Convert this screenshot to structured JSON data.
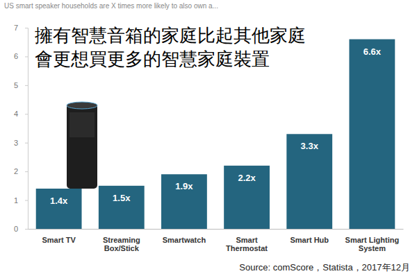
{
  "chart_data": {
    "type": "bar",
    "title": [
      "擁有智慧音箱的家庭比起其他家庭",
      "會更想買更多的智慧家庭裝置"
    ],
    "subtitle": "US smart speaker households are X times more likely to also own a...",
    "source": "Source: comScore，Statista，2017年12月",
    "categories": [
      "Smart TV",
      "Streaming Box/Stick",
      "Smartwatch",
      "Smart Thermostat",
      "Smart Hub",
      "Smart Lighting System"
    ],
    "values": [
      1.4,
      1.5,
      1.9,
      2.2,
      3.3,
      6.6
    ],
    "value_labels": [
      "1.4x",
      "1.5x",
      "1.9x",
      "2.2x",
      "3.3x",
      "6.6x"
    ],
    "color": "#24657f",
    "ylim": [
      0,
      7
    ],
    "yticks": [
      0,
      1,
      2,
      3,
      4,
      5,
      6,
      7
    ],
    "grid": false,
    "data_labels": true
  }
}
